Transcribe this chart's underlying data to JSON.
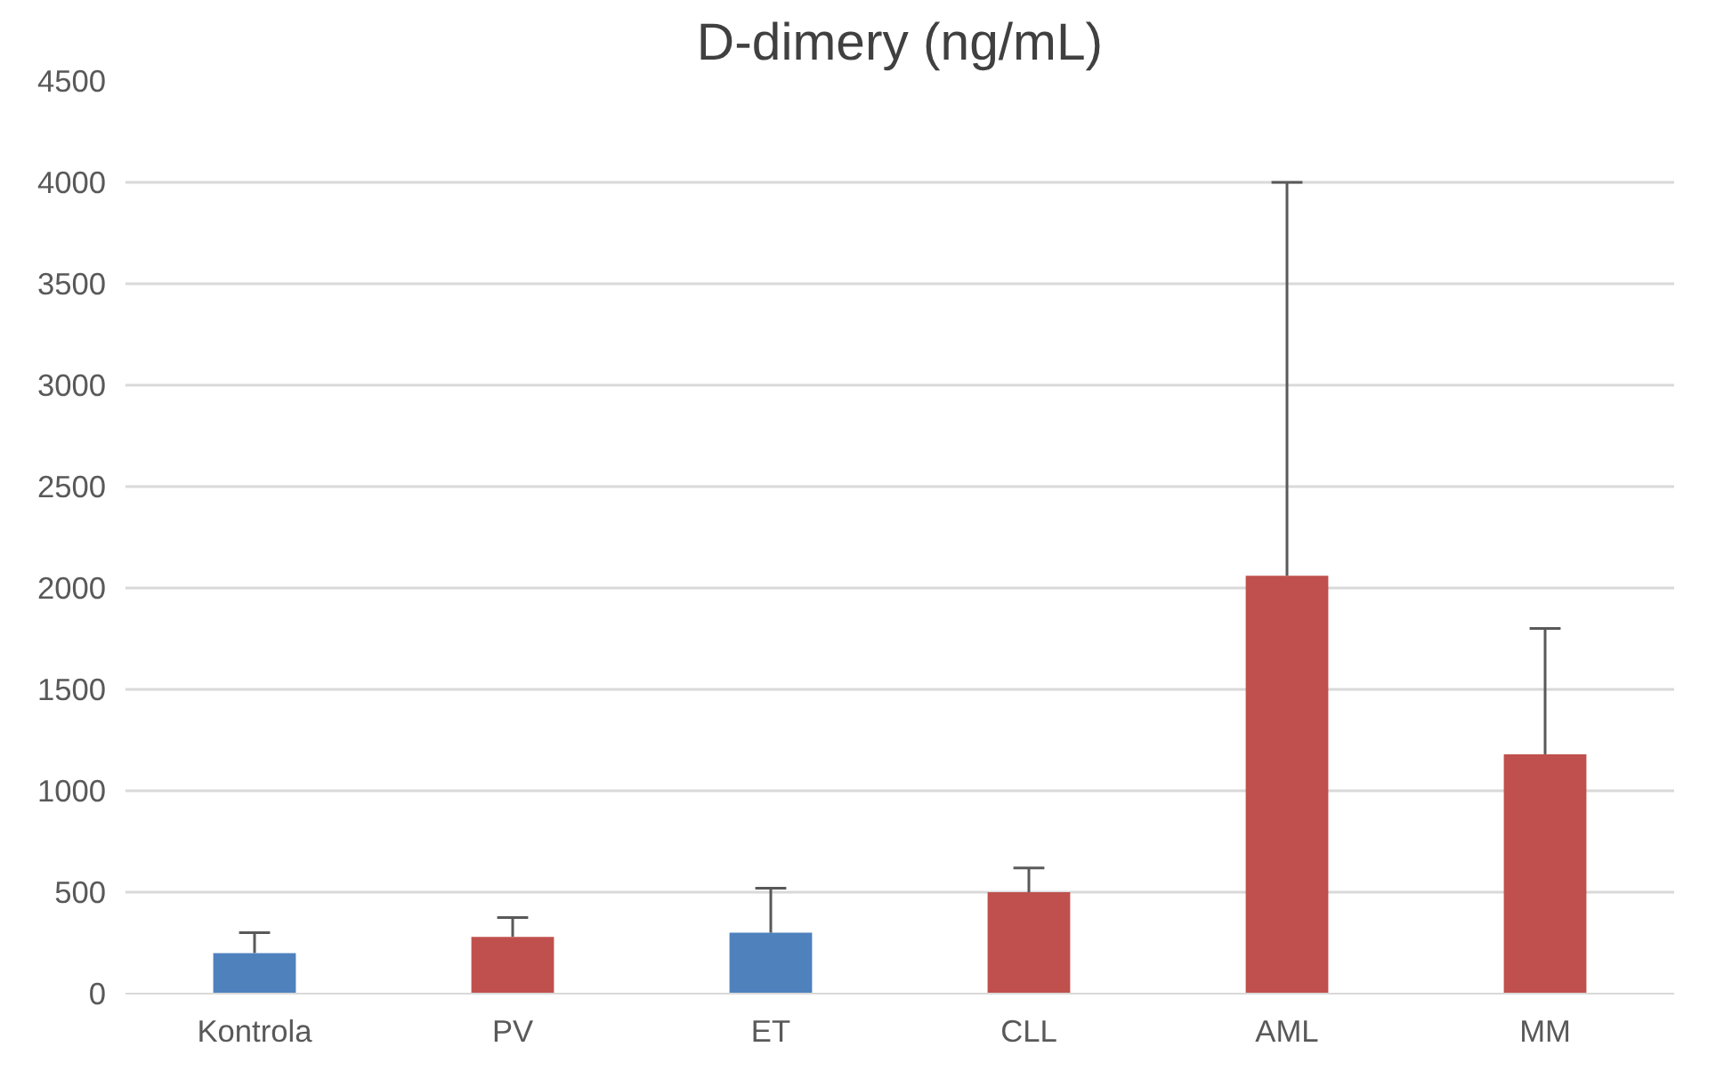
{
  "chart_data": {
    "type": "bar",
    "title": "D-dimery (ng/mL)",
    "categories": [
      "Kontrola",
      "PV",
      "ET",
      "CLL",
      "AML",
      "MM"
    ],
    "values": [
      200,
      280,
      300,
      500,
      2060,
      1180
    ],
    "colors": [
      "#4f81bd",
      "#c0504d",
      "#4f81bd",
      "#c0504d",
      "#c0504d",
      "#c0504d"
    ],
    "errors": [
      [
        200,
        300
      ],
      [
        280,
        375
      ],
      [
        300,
        520
      ],
      [
        500,
        620
      ],
      [
        2060,
        4000
      ],
      [
        1180,
        1800
      ]
    ],
    "ylim": [
      0,
      4500
    ],
    "yticks": [
      0,
      500,
      1000,
      1500,
      2000,
      2500,
      3000,
      3500,
      4000,
      4500
    ],
    "grid": "y"
  }
}
